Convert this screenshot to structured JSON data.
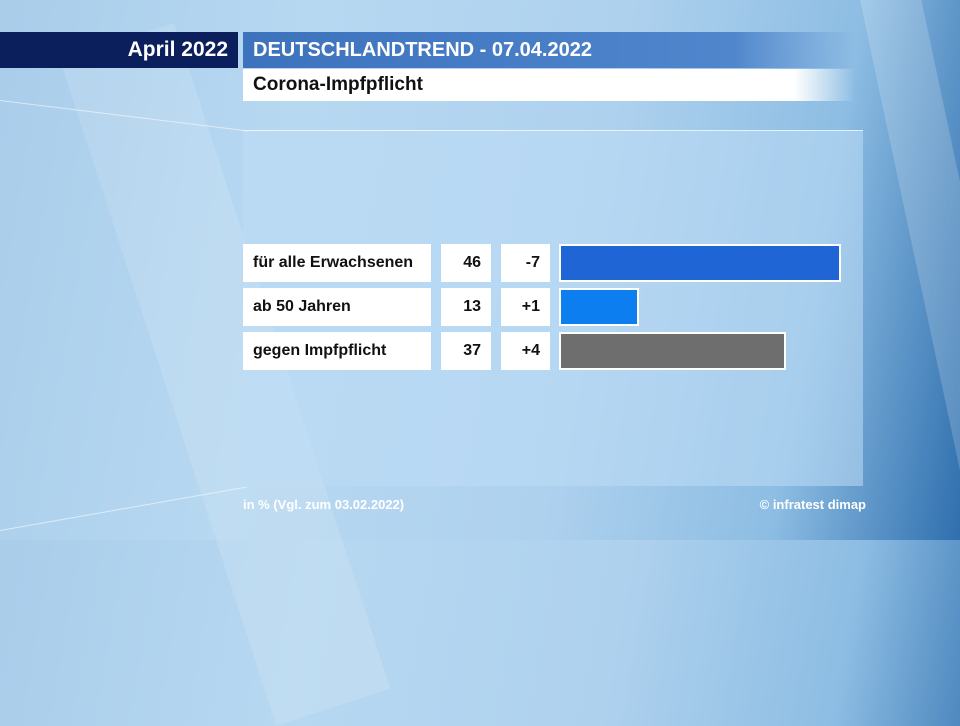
{
  "header": {
    "date_label": "April 2022",
    "series_title": "DEUTSCHLANDTREND - 07.04.2022",
    "topic": "Corona-Impfpflicht"
  },
  "footer": {
    "note": "in % (Vgl. zum 03.02.2022)",
    "source": "© infratest dimap"
  },
  "chart_data": {
    "type": "bar",
    "orientation": "horizontal",
    "title": "Corona-Impfpflicht",
    "unit": "in %",
    "comparison_date": "03.02.2022",
    "xlim": [
      0,
      46
    ],
    "categories": [
      "für alle Erwachsenen",
      "ab 50 Jahren",
      "gegen Impfpflicht"
    ],
    "values": [
      46,
      13,
      37
    ],
    "changes": [
      "-7",
      "+1",
      "+4"
    ],
    "colors": [
      "#1f65d6",
      "#0c7ef0",
      "#6e6e6e"
    ]
  }
}
